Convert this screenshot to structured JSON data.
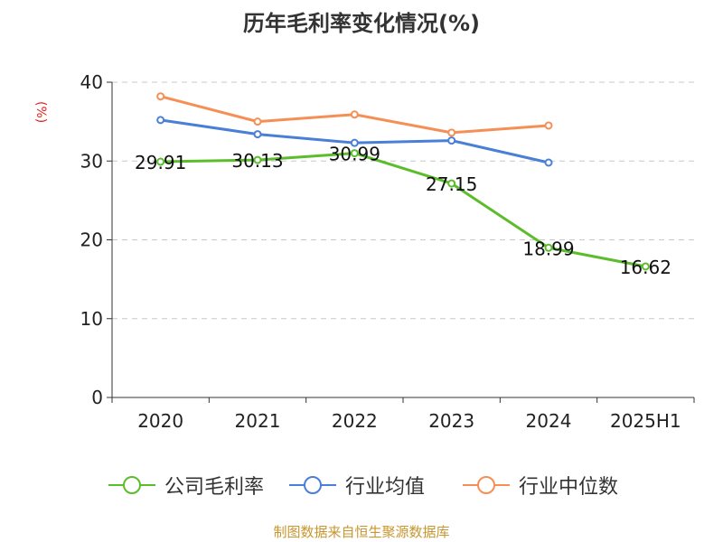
{
  "chart_data": {
    "type": "line",
    "title": "历年毛利率变化情况(%)",
    "ylabel": "(%)",
    "xlabel": "",
    "categories": [
      "2020",
      "2021",
      "2022",
      "2023",
      "2024",
      "2025H1"
    ],
    "ylim": [
      0,
      40
    ],
    "yticks": [
      0,
      10,
      20,
      30,
      40
    ],
    "grid": true,
    "legend_position": "bottom",
    "series": [
      {
        "name": "公司毛利率",
        "color": "#5cbd2c",
        "values": [
          29.91,
          30.13,
          30.99,
          27.15,
          18.99,
          16.62
        ],
        "labels": [
          "29.91",
          "30.13",
          "30.99",
          "27.15",
          "18.99",
          "16.62"
        ]
      },
      {
        "name": "行业均值",
        "color": "#4a7fd6",
        "values": [
          35.2,
          33.4,
          32.3,
          32.6,
          29.8,
          null
        ]
      },
      {
        "name": "行业中位数",
        "color": "#f58f55",
        "values": [
          38.2,
          35.0,
          35.9,
          33.6,
          34.5,
          null
        ]
      }
    ]
  },
  "footer": {
    "source": "制图数据来自恒生聚源数据库"
  }
}
